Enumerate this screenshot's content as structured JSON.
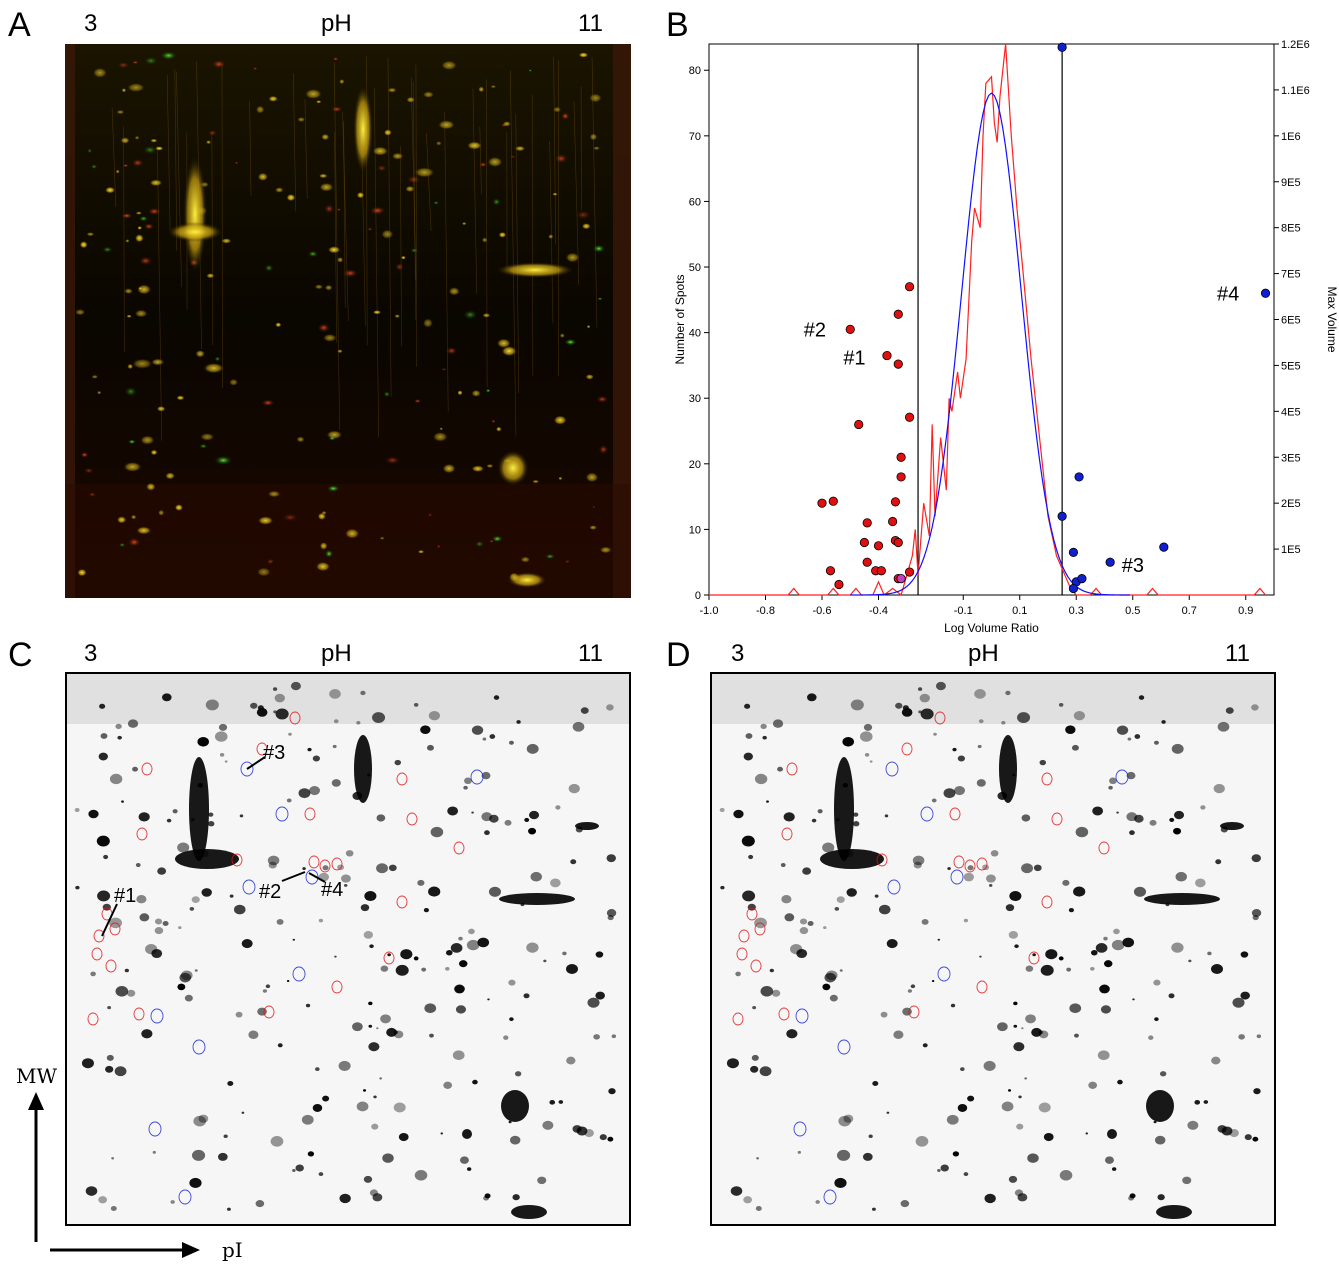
{
  "panels": {
    "a": {
      "letter": "A",
      "ph_left": "3",
      "ph_mid": "pH",
      "ph_right": "11"
    },
    "b": {
      "letter": "B"
    },
    "c": {
      "letter": "C",
      "ph_left": "3",
      "ph_mid": "pH",
      "ph_right": "11",
      "annotations": {
        "s1": "#1",
        "s2": "#2",
        "s3": "#3",
        "s4": "#4"
      }
    },
    "d": {
      "letter": "D",
      "ph_left": "3",
      "ph_mid": "pH",
      "ph_right": "11"
    }
  },
  "axes_arrows": {
    "vertical": "MW",
    "horizontal": "pI"
  },
  "colors": {
    "red_spot": "#e01010",
    "blue_spot": "#1020d0",
    "red_curve": "#ff2020",
    "blue_curve": "#1010ff"
  },
  "chart_data": {
    "type": "scatter",
    "xlabel": "Log Volume Ratio",
    "ylabel": "Number of Spots",
    "y2label": "Max Volume",
    "xlim": [
      -1.0,
      1.0
    ],
    "ylim": [
      0,
      84
    ],
    "y2lim": [
      0,
      1200000.0
    ],
    "xticks": [
      "-1.0",
      "-0.8",
      "-0.6",
      "-0.4",
      "-0.1",
      "0.1",
      "0.3",
      "0.5",
      "0.7",
      "0.9"
    ],
    "xtick_values": [
      -1.0,
      -0.8,
      -0.6,
      -0.4,
      -0.1,
      0.1,
      0.3,
      0.5,
      0.7,
      0.9
    ],
    "yticks": [
      0,
      10,
      20,
      30,
      40,
      50,
      60,
      70,
      80
    ],
    "y2ticks": [
      "1E5",
      "2E5",
      "3E5",
      "4E5",
      "5E5",
      "6E5",
      "7E5",
      "8E5",
      "9E5",
      "1E6",
      "1.1E6",
      "1.2E6"
    ],
    "y2tick_values": [
      100000.0,
      200000.0,
      300000.0,
      400000.0,
      500000.0,
      600000.0,
      700000.0,
      800000.0,
      900000.0,
      1000000.0,
      1100000.0,
      1200000.0
    ],
    "thresholds": [
      -0.26,
      0.25
    ],
    "series": [
      {
        "name": "",
        "color": "red",
        "kind": "points",
        "points": [
          [
            -0.6,
            14
          ],
          [
            -0.56,
            14.3
          ],
          [
            -0.57,
            3.7
          ],
          [
            -0.54,
            1.6
          ],
          [
            -0.47,
            26
          ],
          [
            -0.45,
            8
          ],
          [
            -0.44,
            11
          ],
          [
            -0.44,
            5
          ],
          [
            -0.41,
            3.7
          ],
          [
            -0.4,
            7.5
          ],
          [
            -0.39,
            3.7
          ],
          [
            -0.37,
            36.5
          ],
          [
            -0.33,
            42.8
          ],
          [
            -0.33,
            35.2
          ],
          [
            -0.34,
            14.2
          ],
          [
            -0.35,
            11.2
          ],
          [
            -0.34,
            8.3
          ],
          [
            -0.33,
            8
          ],
          [
            -0.32,
            21
          ],
          [
            -0.32,
            18
          ],
          [
            -0.33,
            2.5
          ],
          [
            -0.29,
            47
          ],
          [
            -0.29,
            27.1
          ],
          [
            -0.29,
            3.5
          ],
          [
            -0.5,
            40.5
          ]
        ]
      },
      {
        "name": "",
        "color": "blue",
        "kind": "points",
        "points": [
          [
            0.25,
            83.5
          ],
          [
            0.25,
            12
          ],
          [
            0.29,
            6.5
          ],
          [
            0.31,
            18
          ],
          [
            0.3,
            2
          ],
          [
            0.32,
            2.5
          ],
          [
            0.29,
            1
          ],
          [
            0.42,
            5
          ],
          [
            0.61,
            7.3
          ],
          [
            0.97,
            46
          ]
        ]
      },
      {
        "name": "",
        "color": "purple",
        "kind": "points",
        "points": [
          [
            -0.32,
            2.5
          ]
        ]
      },
      {
        "name": "",
        "color": "red",
        "kind": "line",
        "points": [
          [
            -1.0,
            0
          ],
          [
            -0.72,
            0
          ],
          [
            -0.7,
            1
          ],
          [
            -0.68,
            0
          ],
          [
            -0.58,
            0
          ],
          [
            -0.56,
            1
          ],
          [
            -0.54,
            0
          ],
          [
            -0.5,
            0
          ],
          [
            -0.48,
            1
          ],
          [
            -0.46,
            0
          ],
          [
            -0.42,
            0
          ],
          [
            -0.4,
            2
          ],
          [
            -0.38,
            0
          ],
          [
            -0.35,
            1
          ],
          [
            -0.32,
            0
          ],
          [
            -0.3,
            3
          ],
          [
            -0.28,
            6
          ],
          [
            -0.27,
            10
          ],
          [
            -0.26,
            3
          ],
          [
            -0.24,
            14
          ],
          [
            -0.22,
            9
          ],
          [
            -0.21,
            26
          ],
          [
            -0.2,
            12
          ],
          [
            -0.18,
            24
          ],
          [
            -0.16,
            16
          ],
          [
            -0.15,
            30
          ],
          [
            -0.14,
            28
          ],
          [
            -0.12,
            34
          ],
          [
            -0.11,
            30
          ],
          [
            -0.09,
            36
          ],
          [
            -0.07,
            54
          ],
          [
            -0.06,
            59
          ],
          [
            -0.04,
            56
          ],
          [
            -0.03,
            70
          ],
          [
            -0.02,
            78
          ],
          [
            0.0,
            79
          ],
          [
            0.01,
            72
          ],
          [
            0.02,
            69
          ],
          [
            0.03,
            76
          ],
          [
            0.04,
            80
          ],
          [
            0.05,
            84
          ],
          [
            0.07,
            70
          ],
          [
            0.09,
            59
          ],
          [
            0.11,
            50
          ],
          [
            0.14,
            36
          ],
          [
            0.17,
            24
          ],
          [
            0.2,
            12
          ],
          [
            0.23,
            6
          ],
          [
            0.26,
            3
          ],
          [
            0.28,
            1
          ],
          [
            0.3,
            0
          ],
          [
            0.35,
            0
          ],
          [
            0.37,
            1
          ],
          [
            0.39,
            0
          ],
          [
            0.55,
            0
          ],
          [
            0.57,
            1
          ],
          [
            0.59,
            0
          ],
          [
            0.93,
            0
          ],
          [
            0.95,
            1
          ],
          [
            0.97,
            0
          ]
        ]
      },
      {
        "name": "",
        "color": "blue",
        "kind": "gaussian",
        "mean": 0.0,
        "sd": 0.105,
        "peak": 76.5
      }
    ],
    "labels": [
      {
        "text": "#1",
        "x": -0.39,
        "y": 36.2
      },
      {
        "text": "#2",
        "x": -0.53,
        "y": 40.5
      },
      {
        "text": "#3",
        "x": 0.44,
        "y": 4.6
      },
      {
        "text": "#4",
        "x": 0.94,
        "y": 46
      }
    ],
    "grid": false
  }
}
